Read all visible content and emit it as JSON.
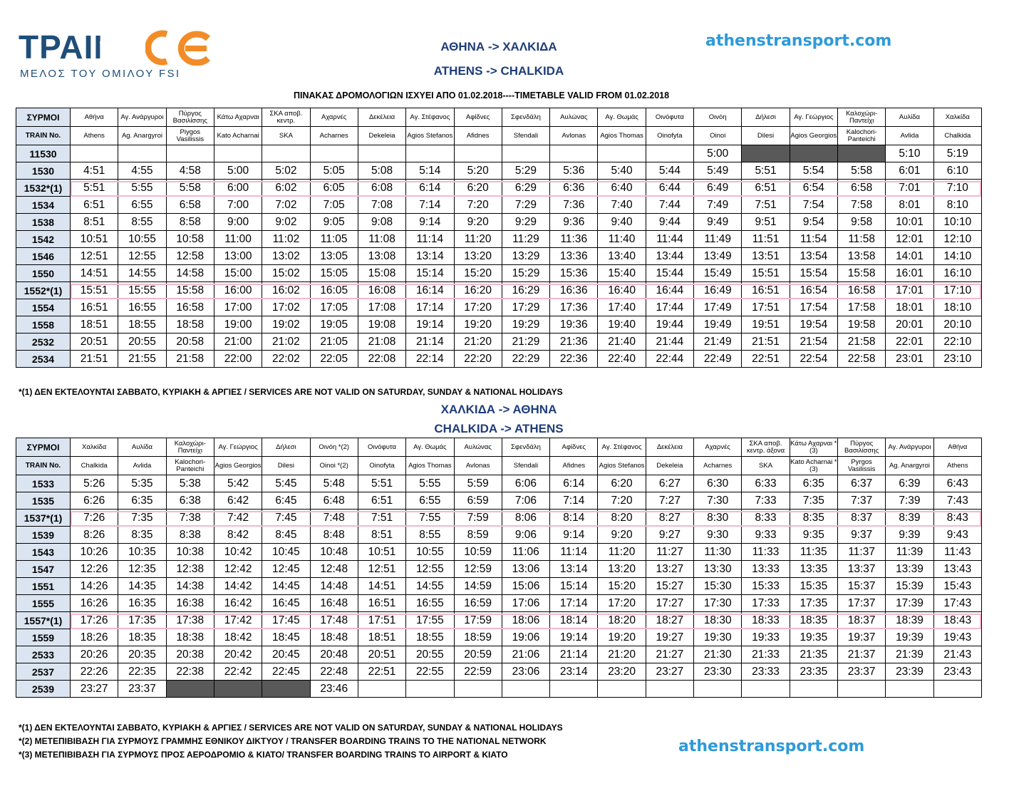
{
  "header": {
    "logo_text": "ΤΡΑΙΝΟΣΕ",
    "logo_subtitle": "ΜΕΛΟΣ ΤΟΥ ΟΜΙΛΟΥ FSI",
    "route_gr": "ΑΘΗΝΑ -> ΧΑΛΚΙΔΑ",
    "route_en": "ATHENS -> CHALKIDA",
    "site": "athenstransport.com",
    "validity": "ΠΙΝΑΚΑΣ ΔΡΟΜΟΛΟΓΙΩΝ  ΙΣΧΥΕΙ ΑΠΟ 01.02.2018----TIMETABLE VALID FROM 01.02.2018"
  },
  "table1": {
    "label_gr": "ΣΥΡΜΟΙ",
    "label_en": "TRAIN No.",
    "stations_gr": [
      "Αθήνα",
      "Αγ. Ανάργυροι",
      "Πύργος Βασιλίσσης",
      "Κάτω Αχαρναι",
      "ΣΚΑ αποβ. κεντρ.",
      "Αχαρνές",
      "Δεκέλεια",
      "Αγ. Στέφανος",
      "Αφίδνες",
      "Σφενδάλη",
      "Αυλώνας",
      "Αγ. Θωμάς",
      "Οινόφυτα",
      "Οινόη",
      "Δήλεσι",
      "Αγ. Γεώργιος",
      "Καλοχώρι-Παντείχι",
      "Αυλίδα",
      "Χαλκίδα"
    ],
    "stations_en": [
      "Athens",
      "Ag. Anargyroi",
      "Piygos Vasilissis",
      "Kato Acharnai",
      "SKA",
      "Acharnes",
      "Dekeleia",
      "Agios Stefanos",
      "Afidnes",
      "Sfendali",
      "Avlonas",
      "Agios Thomas",
      "Oinofyta",
      "Oinoi",
      "Dilesi",
      "Agios Georgios",
      "Kalochori-Panteichi",
      "Avlida",
      "Chalkida"
    ],
    "rows": [
      {
        "train": "11530",
        "times": [
          "",
          "",
          "",
          "",
          "",
          "",
          "",
          "",
          "",
          "",
          "",
          "",
          "",
          "5:00",
          "-",
          "-",
          "-",
          "5:10",
          "5:19"
        ]
      },
      {
        "train": "1530",
        "times": [
          "4:51",
          "4:55",
          "4:58",
          "5:00",
          "5:02",
          "5:05",
          "5:08",
          "5:14",
          "5:20",
          "5:29",
          "5:36",
          "5:40",
          "5:44",
          "5:49",
          "5:51",
          "5:54",
          "5:58",
          "6:01",
          "6:10"
        ]
      },
      {
        "train": "1532*(1)",
        "highlight": true,
        "times": [
          "5:51",
          "5:55",
          "5:58",
          "6:00",
          "6:02",
          "6:05",
          "6:08",
          "6:14",
          "6:20",
          "6:29",
          "6:36",
          "6:40",
          "6:44",
          "6:49",
          "6:51",
          "6:54",
          "6:58",
          "7:01",
          "7:10"
        ]
      },
      {
        "train": "1534",
        "times": [
          "6:51",
          "6:55",
          "6:58",
          "7:00",
          "7:02",
          "7:05",
          "7:08",
          "7:14",
          "7:20",
          "7:29",
          "7:36",
          "7:40",
          "7:44",
          "7:49",
          "7:51",
          "7:54",
          "7:58",
          "8:01",
          "8:10"
        ]
      },
      {
        "train": "1538",
        "times": [
          "8:51",
          "8:55",
          "8:58",
          "9:00",
          "9:02",
          "9:05",
          "9:08",
          "9:14",
          "9:20",
          "9:29",
          "9:36",
          "9:40",
          "9:44",
          "9:49",
          "9:51",
          "9:54",
          "9:58",
          "10:01",
          "10:10"
        ]
      },
      {
        "train": "1542",
        "times": [
          "10:51",
          "10:55",
          "10:58",
          "11:00",
          "11:02",
          "11:05",
          "11:08",
          "11:14",
          "11:20",
          "11:29",
          "11:36",
          "11:40",
          "11:44",
          "11:49",
          "11:51",
          "11:54",
          "11:58",
          "12:01",
          "12:10"
        ]
      },
      {
        "train": "1546",
        "times": [
          "12:51",
          "12:55",
          "12:58",
          "13:00",
          "13:02",
          "13:05",
          "13:08",
          "13:14",
          "13:20",
          "13:29",
          "13:36",
          "13:40",
          "13:44",
          "13:49",
          "13:51",
          "13:54",
          "13:58",
          "14:01",
          "14:10"
        ]
      },
      {
        "train": "1550",
        "times": [
          "14:51",
          "14:55",
          "14:58",
          "15:00",
          "15:02",
          "15:05",
          "15:08",
          "15:14",
          "15:20",
          "15:29",
          "15:36",
          "15:40",
          "15:44",
          "15:49",
          "15:51",
          "15:54",
          "15:58",
          "16:01",
          "16:10"
        ]
      },
      {
        "train": "1552*(1)",
        "highlight": true,
        "times": [
          "15:51",
          "15:55",
          "15:58",
          "16:00",
          "16:02",
          "16:05",
          "16:08",
          "16:14",
          "16:20",
          "16:29",
          "16:36",
          "16:40",
          "16:44",
          "16:49",
          "16:51",
          "16:54",
          "16:58",
          "17:01",
          "17:10"
        ]
      },
      {
        "train": "1554",
        "times": [
          "16:51",
          "16:55",
          "16:58",
          "17:00",
          "17:02",
          "17:05",
          "17:08",
          "17:14",
          "17:20",
          "17:29",
          "17:36",
          "17:40",
          "17:44",
          "17:49",
          "17:51",
          "17:54",
          "17:58",
          "18:01",
          "18:10"
        ]
      },
      {
        "train": "1558",
        "times": [
          "18:51",
          "18:55",
          "18:58",
          "19:00",
          "19:02",
          "19:05",
          "19:08",
          "19:14",
          "19:20",
          "19:29",
          "19:36",
          "19:40",
          "19:44",
          "19:49",
          "19:51",
          "19:54",
          "19:58",
          "20:01",
          "20:10"
        ]
      },
      {
        "train": "2532",
        "times": [
          "20:51",
          "20:55",
          "20:58",
          "21:00",
          "21:02",
          "21:05",
          "21:08",
          "21:14",
          "21:20",
          "21:29",
          "21:36",
          "21:40",
          "21:44",
          "21:49",
          "21:51",
          "21:54",
          "21:58",
          "22:01",
          "22:10"
        ]
      },
      {
        "train": "2534",
        "times": [
          "21:51",
          "21:55",
          "21:58",
          "22:00",
          "22:02",
          "22:05",
          "22:08",
          "22:14",
          "22:20",
          "22:29",
          "22:36",
          "22:40",
          "22:44",
          "22:49",
          "22:51",
          "22:54",
          "22:58",
          "23:01",
          "23:10"
        ]
      }
    ]
  },
  "note1": "*(1) ΔΕΝ ΕΚΤΕΛΟΥΝΤΑΙ ΣΑΒΒΑΤΟ, ΚΥΡΙΑΚΗ & ΑΡΓΙΕΣ / SERVICES ARE NOT VALID ON SATURDAY, SUNDAY & NATIONAL HOLIDAYS",
  "section2": {
    "route_gr": "ΧΑΛΚΙΔΑ -> ΑΘΗΝΑ",
    "route_en": "CHALKIDA -> ATHENS"
  },
  "table2": {
    "label_gr": "ΣΥΡΜΟΙ",
    "label_en": "TRAIN No.",
    "stations_gr": [
      "Χαλκίδα",
      "Αυλίδα",
      "Καλοχώρι-Παντείχι",
      "Αγ. Γεώργιος",
      "Δήλεσι",
      "Οινόη *(2)",
      "Οινόφυτα",
      "Αγ. Θωμάς",
      "Αυλώνας",
      "Σφενδάλη",
      "Αφίδνες",
      "Αγ. Στέφανος",
      "Δεκέλεια",
      "Αχαρνές",
      "ΣΚΑ αποβ. κεντρ. άξονα",
      "Κάτω Αχαρναι *(3)",
      "Πύργος Βασιλίσσης",
      "Αγ. Ανάργυροι",
      "Αθήνα"
    ],
    "stations_en": [
      "Chalkida",
      "Avlida",
      "Kalochori-Panteichi",
      "Agios Georgios",
      "Dilesi",
      "Oinoi *(2)",
      "Oinofyta",
      "Agios Thomas",
      "Avlonas",
      "Sfendali",
      "Afidnes",
      "Agios Stefanos",
      "Dekeleia",
      "Acharnes",
      "SKA",
      "Kato Acharnai *(3)",
      "Pyrgos Vasilissis",
      "Ag. Anargyroi",
      "Athens"
    ],
    "rows": [
      {
        "train": "1533",
        "times": [
          "5:26",
          "5:35",
          "5:38",
          "5:42",
          "5:45",
          "5:48",
          "5:51",
          "5:55",
          "5:59",
          "6:06",
          "6:14",
          "6:20",
          "6:27",
          "6:30",
          "6:33",
          "6:35",
          "6:37",
          "6:39",
          "6:43"
        ]
      },
      {
        "train": "1535",
        "times": [
          "6:26",
          "6:35",
          "6:38",
          "6:42",
          "6:45",
          "6:48",
          "6:51",
          "6:55",
          "6:59",
          "7:06",
          "7:14",
          "7:20",
          "7:27",
          "7:30",
          "7:33",
          "7:35",
          "7:37",
          "7:39",
          "7:43"
        ]
      },
      {
        "train": "1537*(1)",
        "highlight": true,
        "times": [
          "7:26",
          "7:35",
          "7:38",
          "7:42",
          "7:45",
          "7:48",
          "7:51",
          "7:55",
          "7:59",
          "8:06",
          "8:14",
          "8:20",
          "8:27",
          "8:30",
          "8:33",
          "8:35",
          "8:37",
          "8:39",
          "8:43"
        ]
      },
      {
        "train": "1539",
        "times": [
          "8:26",
          "8:35",
          "8:38",
          "8:42",
          "8:45",
          "8:48",
          "8:51",
          "8:55",
          "8:59",
          "9:06",
          "9:14",
          "9:20",
          "9:27",
          "9:30",
          "9:33",
          "9:35",
          "9:37",
          "9:39",
          "9:43"
        ]
      },
      {
        "train": "1543",
        "times": [
          "10:26",
          "10:35",
          "10:38",
          "10:42",
          "10:45",
          "10:48",
          "10:51",
          "10:55",
          "10:59",
          "11:06",
          "11:14",
          "11:20",
          "11:27",
          "11:30",
          "11:33",
          "11:35",
          "11:37",
          "11:39",
          "11:43"
        ]
      },
      {
        "train": "1547",
        "times": [
          "12:26",
          "12:35",
          "12:38",
          "12:42",
          "12:45",
          "12:48",
          "12:51",
          "12:55",
          "12:59",
          "13:06",
          "13:14",
          "13:20",
          "13:27",
          "13:30",
          "13:33",
          "13:35",
          "13:37",
          "13:39",
          "13:43"
        ]
      },
      {
        "train": "1551",
        "times": [
          "14:26",
          "14:35",
          "14:38",
          "14:42",
          "14:45",
          "14:48",
          "14:51",
          "14:55",
          "14:59",
          "15:06",
          "15:14",
          "15:20",
          "15:27",
          "15:30",
          "15:33",
          "15:35",
          "15:37",
          "15:39",
          "15:43"
        ]
      },
      {
        "train": "1555",
        "times": [
          "16:26",
          "16:35",
          "16:38",
          "16:42",
          "16:45",
          "16:48",
          "16:51",
          "16:55",
          "16:59",
          "17:06",
          "17:14",
          "17:20",
          "17:27",
          "17:30",
          "17:33",
          "17:35",
          "17:37",
          "17:39",
          "17:43"
        ]
      },
      {
        "train": "1557*(1)",
        "highlight": true,
        "times": [
          "17:26",
          "17:35",
          "17:38",
          "17:42",
          "17:45",
          "17:48",
          "17:51",
          "17:55",
          "17:59",
          "18:06",
          "18:14",
          "18:20",
          "18:27",
          "18:30",
          "18:33",
          "18:35",
          "18:37",
          "18:39",
          "18:43"
        ]
      },
      {
        "train": "1559",
        "times": [
          "18:26",
          "18:35",
          "18:38",
          "18:42",
          "18:45",
          "18:48",
          "18:51",
          "18:55",
          "18:59",
          "19:06",
          "19:14",
          "19:20",
          "19:27",
          "19:30",
          "19:33",
          "19:35",
          "19:37",
          "19:39",
          "19:43"
        ]
      },
      {
        "train": "2533",
        "times": [
          "20:26",
          "20:35",
          "20:38",
          "20:42",
          "20:45",
          "20:48",
          "20:51",
          "20:55",
          "20:59",
          "21:06",
          "21:14",
          "21:20",
          "21:27",
          "21:30",
          "21:33",
          "21:35",
          "21:37",
          "21:39",
          "21:43"
        ]
      },
      {
        "train": "2537",
        "times": [
          "22:26",
          "22:35",
          "22:38",
          "22:42",
          "22:45",
          "22:48",
          "22:51",
          "22:55",
          "22:59",
          "23:06",
          "23:14",
          "23:20",
          "23:27",
          "23:30",
          "23:33",
          "23:35",
          "23:37",
          "23:39",
          "23:43"
        ]
      },
      {
        "train": "2539",
        "times": [
          "23:27",
          "23:37",
          "-",
          "-",
          "-",
          "23:46",
          "",
          "",
          "",
          "",
          "",
          "",
          "",
          "",
          "",
          "",
          "",
          "",
          ""
        ]
      }
    ]
  },
  "notes2": [
    "*(1) ΔΕΝ ΕΚΤΕΛΟΥΝΤΑΙ ΣΑΒΒΑΤΟ, ΚΥΡΙΑΚΗ & ΑΡΓΙΕΣ / SERVICES ARE NOT VALID ON SATURDAY, SUNDAY & NATIONAL HOLIDAYS",
    "*(2)  ΜΕΤΕΠΙΒΙΒΑΣΗ ΓΙΑ ΣΥΡΜΟΥΣ ΓΡΑΜΜΗΣ ΕΘΝΙΚΟΥ ΔΙΚΤΥΟΥ / TRANSFER BOARDING TRAINS TO THE NATIONAL NETWORK",
    "*(3)  ΜΕΤΕΠΙΒΙΒΑΣΗ ΓΙΑ ΣΥΡΜΟΥΣ ΠΡΟΣ ΑΕΡΟΔΡΟΜΙΟ & ΚΙΑΤΟ/ TRANSFER BOARDING TRAINS TO AIRPORT & KIATO"
  ],
  "footer_site": "athenstransport.com",
  "colors": {
    "header_blue": "#1f4e79",
    "label_bg": "#dbe5f1",
    "highlight": "#f2b8cc",
    "site_blue": "#2e9ad8",
    "grey_cell": "#595959"
  }
}
